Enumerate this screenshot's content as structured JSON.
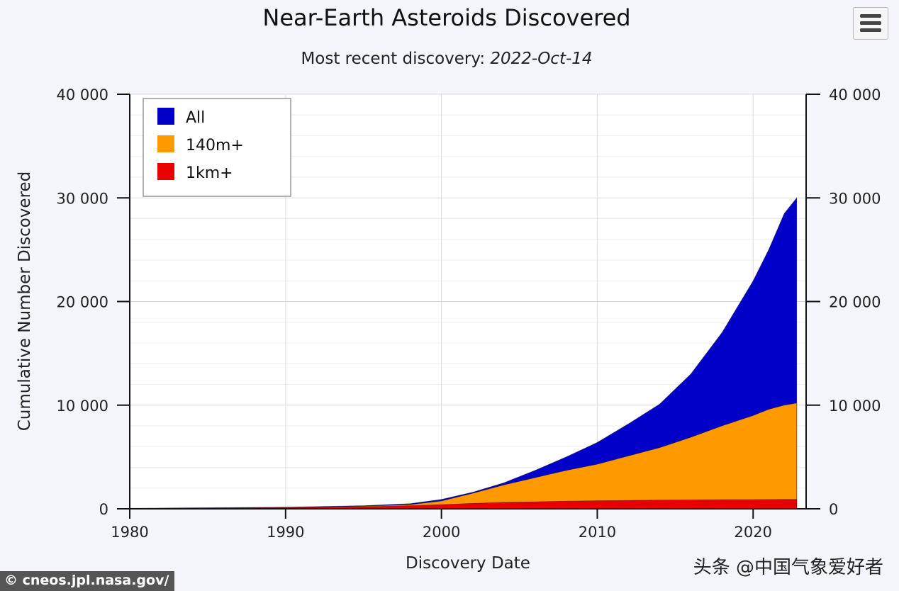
{
  "title": "Near-Earth Asteroids Discovered",
  "subtitle_prefix": "Most recent discovery: ",
  "subtitle_date": "2022-Oct-14",
  "footer_credit": "© cneos.jpl.nasa.gov/",
  "watermark": "头条 @中国气象爱好者",
  "menu_icon": "hamburger-menu-icon",
  "chart_data": {
    "type": "area",
    "title": "Near-Earth Asteroids Discovered",
    "xlabel": "Discovery Date",
    "ylabel": "Cumulative Number Discovered",
    "xlim": [
      1980,
      2023.4
    ],
    "ylim": [
      0,
      40000
    ],
    "x_ticks": [
      "1980",
      "1990",
      "2000",
      "2010",
      "2020"
    ],
    "y_ticks": [
      "0",
      "10 000",
      "20 000",
      "30 000",
      "40 000"
    ],
    "grid": true,
    "legend_position": "top-left",
    "x": [
      1980,
      1985,
      1990,
      1995,
      1998,
      2000,
      2002,
      2004,
      2006,
      2008,
      2010,
      2012,
      2014,
      2016,
      2018,
      2020,
      2021,
      2022,
      2022.8
    ],
    "series": [
      {
        "name": "All",
        "color": "#0000c8",
        "values": [
          50,
          100,
          150,
          300,
          500,
          900,
          1600,
          2500,
          3700,
          5000,
          6400,
          8200,
          10100,
          13000,
          17000,
          22000,
          25000,
          28500,
          30000
        ]
      },
      {
        "name": "140m+",
        "color": "#ff9900",
        "values": [
          30,
          70,
          120,
          250,
          400,
          750,
          1500,
          2300,
          3000,
          3700,
          4300,
          5100,
          5900,
          6900,
          8000,
          9000,
          9600,
          10000,
          10200
        ]
      },
      {
        "name": "1km+",
        "color": "#e60000",
        "values": [
          20,
          50,
          100,
          200,
          300,
          400,
          520,
          620,
          680,
          740,
          780,
          810,
          840,
          860,
          880,
          890,
          895,
          900,
          905
        ]
      }
    ]
  }
}
